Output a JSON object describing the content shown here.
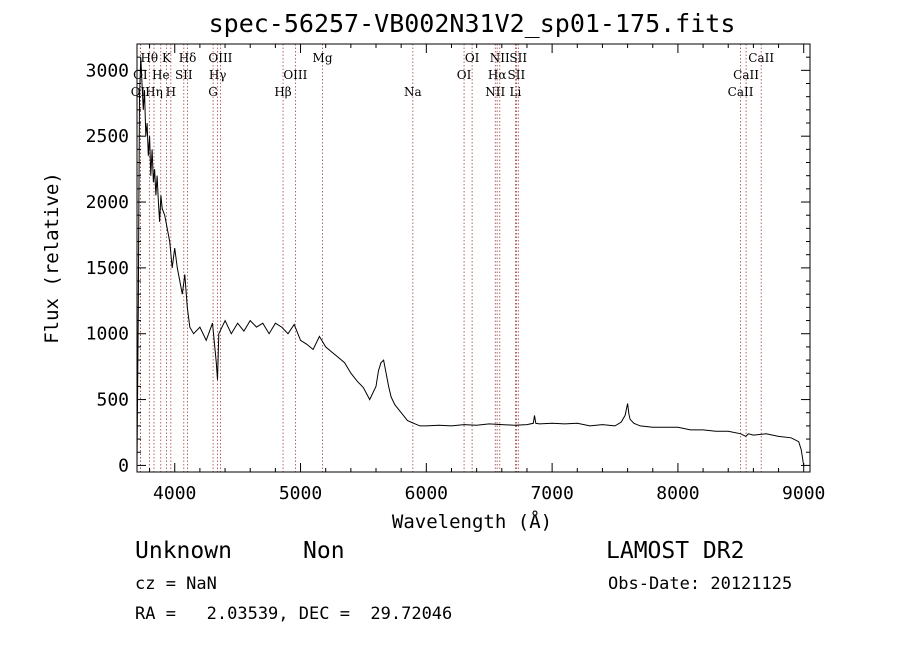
{
  "chart_data": {
    "type": "line",
    "title": "spec-56257-VB002N31V2_sp01-175.fits",
    "xlabel": "Wavelength (Å)",
    "ylabel": "Flux (relative)",
    "xlim": [
      3700,
      9050
    ],
    "ylim": [
      -50,
      3200
    ],
    "x_ticks": [
      4000,
      5000,
      6000,
      7000,
      8000,
      9000
    ],
    "y_ticks": [
      0,
      500,
      1000,
      1500,
      2000,
      2500,
      3000
    ],
    "grid": false,
    "series": [
      {
        "x": [
          3700,
          3710,
          3720,
          3730,
          3740,
          3750,
          3760,
          3770,
          3780,
          3790,
          3800,
          3810,
          3820,
          3830,
          3840,
          3850,
          3860,
          3870,
          3880,
          3890,
          3900,
          3920,
          3940,
          3960,
          3980,
          4000,
          4020,
          4040,
          4060,
          4080,
          4100,
          4120,
          4150,
          4200,
          4250,
          4300,
          4330,
          4340,
          4350,
          4400,
          4450,
          4500,
          4550,
          4600,
          4650,
          4700,
          4750,
          4800,
          4850,
          4900,
          4950,
          5000,
          5050,
          5100,
          5150,
          5200,
          5250,
          5300,
          5350,
          5400,
          5450,
          5500,
          5550,
          5600,
          5620,
          5640,
          5660,
          5680,
          5700,
          5720,
          5750,
          5800,
          5850,
          5900,
          5950,
          6000,
          6100,
          6200,
          6300,
          6400,
          6500,
          6600,
          6700,
          6800,
          6850,
          6860,
          6870,
          6900,
          7000,
          7100,
          7200,
          7300,
          7400,
          7500,
          7550,
          7580,
          7600,
          7610,
          7620,
          7650,
          7700,
          7800,
          7900,
          8000,
          8100,
          8200,
          8300,
          8400,
          8500,
          8540,
          8560,
          8600,
          8700,
          8800,
          8900,
          8960,
          8980,
          9000
        ],
        "y": [
          0,
          1200,
          2800,
          3100,
          2900,
          2700,
          2850,
          2500,
          2600,
          2350,
          2500,
          2200,
          2400,
          2150,
          2250,
          2050,
          2200,
          2000,
          1850,
          2050,
          1950,
          1900,
          1800,
          1700,
          1500,
          1650,
          1500,
          1400,
          1300,
          1450,
          1200,
          1050,
          1000,
          1050,
          950,
          1080,
          780,
          650,
          1000,
          1100,
          1000,
          1080,
          1020,
          1100,
          1050,
          1080,
          1000,
          1080,
          1050,
          1000,
          1070,
          950,
          920,
          880,
          980,
          900,
          860,
          820,
          780,
          700,
          640,
          590,
          500,
          600,
          720,
          780,
          800,
          700,
          600,
          520,
          460,
          400,
          340,
          320,
          300,
          300,
          305,
          300,
          310,
          305,
          315,
          310,
          305,
          310,
          320,
          380,
          320,
          315,
          320,
          315,
          320,
          300,
          310,
          300,
          330,
          380,
          470,
          390,
          350,
          320,
          300,
          290,
          290,
          290,
          270,
          270,
          260,
          260,
          240,
          220,
          240,
          230,
          240,
          220,
          210,
          180,
          120,
          0
        ]
      }
    ],
    "annotations": [
      {
        "label": "Hθ",
        "x": 3798,
        "row": 0
      },
      {
        "label": "K",
        "x": 3934,
        "row": 0
      },
      {
        "label": "Hδ",
        "x": 4102,
        "row": 0
      },
      {
        "label": "OIII",
        "x": 4363,
        "row": 0
      },
      {
        "label": "Mg",
        "x": 5175,
        "row": 0
      },
      {
        "label": "OI",
        "x": 6364,
        "row": 0
      },
      {
        "label": "NII",
        "x": 6584,
        "row": 0
      },
      {
        "label": "SII",
        "x": 6731,
        "row": 0
      },
      {
        "label": "CaII",
        "x": 8662,
        "row": 0
      },
      {
        "label": "OI",
        "x": 3727,
        "row": 1
      },
      {
        "label": "He",
        "x": 3889,
        "row": 1
      },
      {
        "label": "SII",
        "x": 4072,
        "row": 1
      },
      {
        "label": "Hγ",
        "x": 4341,
        "row": 1
      },
      {
        "label": "OIII",
        "x": 4959,
        "row": 1
      },
      {
        "label": "OI",
        "x": 6300,
        "row": 1
      },
      {
        "label": "Hα",
        "x": 6563,
        "row": 1
      },
      {
        "label": "SII",
        "x": 6716,
        "row": 1
      },
      {
        "label": "CaII",
        "x": 8542,
        "row": 1
      },
      {
        "label": "OII",
        "x": 3727,
        "row": 2
      },
      {
        "label": "Hη",
        "x": 3835,
        "row": 2
      },
      {
        "label": "H",
        "x": 3969,
        "row": 2
      },
      {
        "label": "G",
        "x": 4305,
        "row": 2
      },
      {
        "label": "Hβ",
        "x": 4861,
        "row": 2
      },
      {
        "label": "Na",
        "x": 5893,
        "row": 2
      },
      {
        "label": "NII",
        "x": 6548,
        "row": 2
      },
      {
        "label": "Li",
        "x": 6708,
        "row": 2
      },
      {
        "label": "CaII",
        "x": 8498,
        "row": 2
      }
    ]
  },
  "info": {
    "class_label": "Unknown",
    "subclass_label": "Non",
    "survey_label": "LAMOST DR2",
    "cz_text": "cz = NaN",
    "obs_date_text": "Obs-Date: 20121125",
    "coords_text": "RA =   2.03539, DEC =  29.72046"
  }
}
